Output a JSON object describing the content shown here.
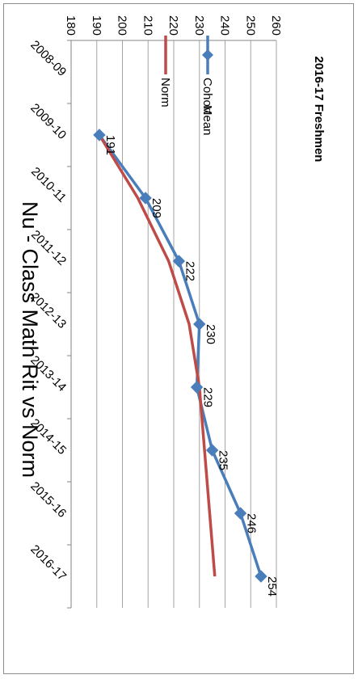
{
  "chart_data": {
    "type": "line",
    "title": "Nu - Class Math Rit vs Norm",
    "subtitle": "2016-17 Freshmen",
    "subtitle_color": "#00a050",
    "categories": [
      "2008-09",
      "2009-10",
      "2010-11",
      "2011-12",
      "2012-13",
      "2013-14",
      "2014-15",
      "2015-16",
      "2016-17"
    ],
    "ylim": [
      180,
      260
    ],
    "yticks": [
      180,
      190,
      200,
      210,
      220,
      230,
      240,
      250,
      260
    ],
    "grid": true,
    "legend_position": "top-right",
    "orientation": "rotated-90-clockwise",
    "series": [
      {
        "name": "Cohort Mean",
        "color": "#4a7ebb",
        "marker": "diamond",
        "values": [
          null,
          191,
          209,
          222,
          230,
          229,
          235,
          246,
          254
        ],
        "data_labels": [
          "",
          "191",
          "209",
          "222",
          "230",
          "229",
          "235",
          "246",
          "254"
        ]
      },
      {
        "name": "Norm",
        "color": "#be4b48",
        "marker": "none",
        "values": [
          null,
          191,
          206,
          218,
          226,
          230,
          232,
          234,
          236
        ]
      }
    ],
    "legend": [
      {
        "lines": [
          "Cohort",
          "Mean"
        ]
      },
      {
        "lines": [
          "Norm"
        ]
      }
    ]
  }
}
